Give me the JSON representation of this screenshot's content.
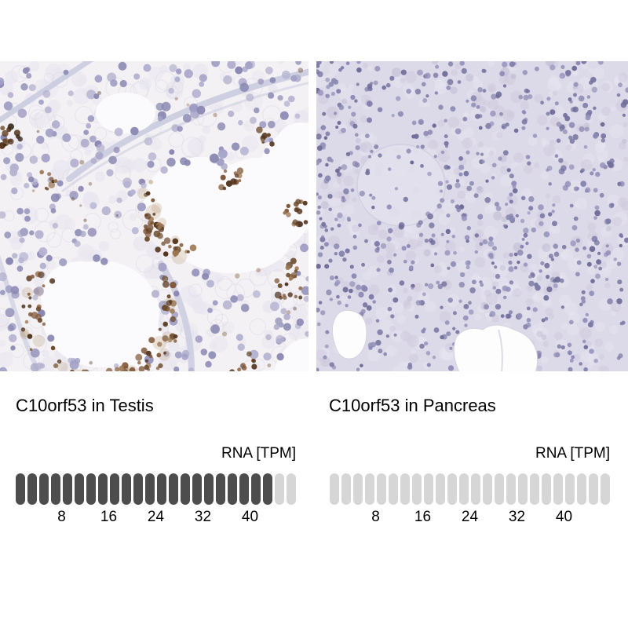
{
  "panels": [
    {
      "title": "C10orf53 in Testis",
      "rna_unit_label": "RNA [TPM]",
      "scale": {
        "total_pills": 24,
        "filled_pills": 22,
        "tpm_per_pill": 2,
        "tick_labels": [
          "8",
          "16",
          "24",
          "32",
          "40"
        ]
      }
    },
    {
      "title": "C10orf53 in Pancreas",
      "rna_unit_label": "RNA [TPM]",
      "scale": {
        "total_pills": 24,
        "filled_pills": 0,
        "tpm_per_pill": 2,
        "tick_labels": [
          "8",
          "16",
          "24",
          "32",
          "40"
        ]
      }
    }
  ],
  "colors": {
    "pill_filled": "#4d4d4d",
    "pill_empty": "#d6d6d6",
    "text": "#000000",
    "page_background": "#ffffff",
    "ihc_nuclei_blue": "#8b89b3",
    "ihc_dab_brown": "#82593a",
    "ihc_background_testis": "#f3f1f4",
    "ihc_background_pancreas": "#dcd9e8"
  },
  "chart_data": [
    {
      "type": "bar",
      "subtype": "pictorial-unit-scale",
      "title": "C10orf53 in Testis",
      "ylabel": "RNA [TPM]",
      "axis_ticks": [
        8,
        16,
        24,
        32,
        40
      ],
      "axis_range": [
        0,
        48
      ],
      "units_total": 24,
      "units_filled": 22,
      "tpm_per_unit": 2,
      "value_tpm_estimate": 44
    },
    {
      "type": "bar",
      "subtype": "pictorial-unit-scale",
      "title": "C10orf53 in Pancreas",
      "ylabel": "RNA [TPM]",
      "axis_ticks": [
        8,
        16,
        24,
        32,
        40
      ],
      "axis_range": [
        0,
        48
      ],
      "units_total": 24,
      "units_filled": 0,
      "tpm_per_unit": 2,
      "value_tpm_estimate": 0
    }
  ]
}
